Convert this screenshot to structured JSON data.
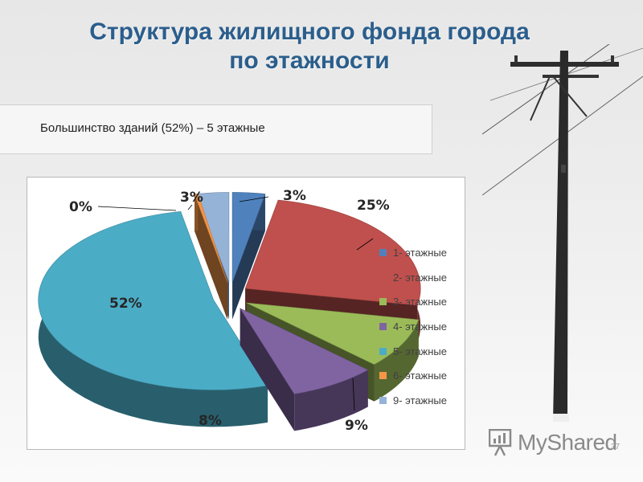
{
  "slide": {
    "title_line1": "Структура жилищного фонда города",
    "title_line2": "по этажности",
    "note": "Большинство зданий (52%) – 5 этажные",
    "watermark": "MyShared",
    "slide_number": "37"
  },
  "chart_data": {
    "type": "pie",
    "title": "",
    "legend_position": "right",
    "slices": [
      {
        "label": "1- этажные",
        "value": 3,
        "value_label": "3%",
        "color": "#4f81bd"
      },
      {
        "label": "2- этажные",
        "value": 25,
        "value_label": "25%",
        "color": "#c0504d"
      },
      {
        "label": "3- этажные",
        "value": 9,
        "value_label": "9%",
        "color": "#9bbb59"
      },
      {
        "label": "4- этажные",
        "value": 8,
        "value_label": "8%",
        "color": "#8064a2"
      },
      {
        "label": "5- этажные",
        "value": 52,
        "value_label": "52%",
        "color": "#4bacc6"
      },
      {
        "label": "6- этажные",
        "value": 0,
        "value_label": "0%",
        "color": "#f79646"
      },
      {
        "label": "9- этажные",
        "value": 3,
        "value_label": "3%",
        "color": "#95b3d7"
      }
    ]
  }
}
